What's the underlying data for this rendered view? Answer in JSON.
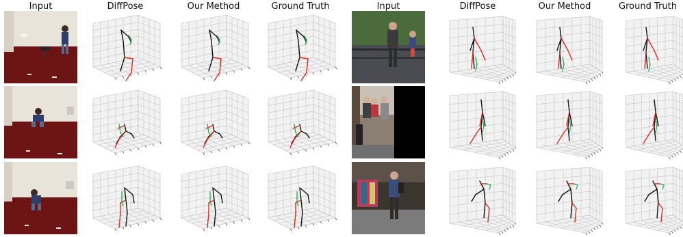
{
  "headers": {
    "left": [
      "Input",
      "DiffPose",
      "Our Method",
      "Ground Truth"
    ],
    "right": [
      "Input",
      "DiffPose",
      "Our Method",
      "Ground Truth"
    ]
  },
  "colors": {
    "skeleton_left": "#111111",
    "skeleton_right": "#e0281e",
    "head_marker": "#1aa84a",
    "grid": "#bdbdbd",
    "pane": "#f2f2f2",
    "carpet": "#6d1414",
    "wall": "#e9e4d9"
  },
  "scenes": [
    {
      "set": "indoor",
      "row": 1,
      "input": "indoor-studio-walking"
    },
    {
      "set": "indoor",
      "row": 2,
      "input": "indoor-studio-crouching"
    },
    {
      "set": "indoor",
      "row": 3,
      "input": "indoor-studio-bending"
    },
    {
      "set": "outdoor",
      "row": 1,
      "input": "outdoor-bridge-walking"
    },
    {
      "set": "outdoor",
      "row": 2,
      "input": "outdoor-street-group"
    },
    {
      "set": "outdoor",
      "row": 3,
      "input": "outdoor-market-shop"
    }
  ]
}
